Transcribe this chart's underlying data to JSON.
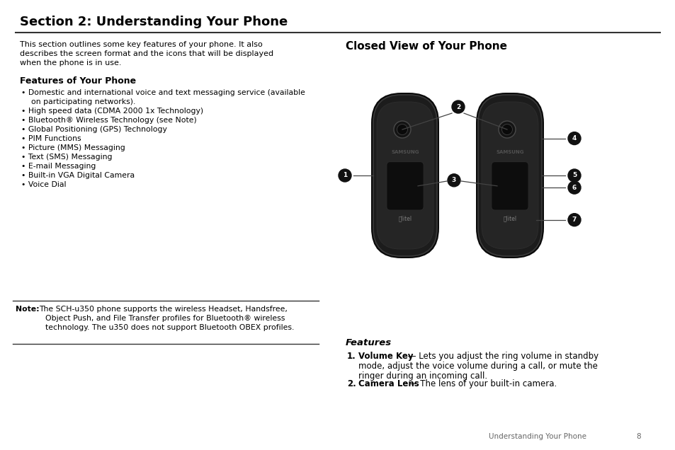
{
  "title": "Section 2: Understanding Your Phone",
  "bg_color": "#ffffff",
  "title_color": "#000000",
  "body_text_intro_lines": [
    "This section outlines some key features of your phone. It also",
    "describes the screen format and the icons that will be displayed",
    "when the phone is in use."
  ],
  "features_title": "Features of Your Phone",
  "features_list": [
    [
      "Domestic and international voice and text messaging service (available",
      "on participating networks)."
    ],
    [
      "High speed data (CDMA 2000 1x Technology)"
    ],
    [
      "Bluetooth® Wireless Technology (see Note)"
    ],
    [
      "Global Positioning (GPS) Technology"
    ],
    [
      "PIM Functions"
    ],
    [
      "Picture (MMS) Messaging"
    ],
    [
      "Text (SMS) Messaging"
    ],
    [
      "E-mail Messaging"
    ],
    [
      "Built-in VGA Digital Camera"
    ],
    [
      "Voice Dial"
    ]
  ],
  "note_line1": "The SCH-u350 phone supports the wireless Headset, Handsfree,",
  "note_line2": "Object Push, and File Transfer profiles for Bluetooth® wireless",
  "note_line3": "technology. The u350 does not support Bluetooth OBEX profiles.",
  "closed_view_title": "Closed View of Your Phone",
  "features_label": "Features",
  "feature_1_bold": "Volume Key",
  "feature_1_rest_line1": " — Lets you adjust the ring volume in standby",
  "feature_1_rest_line2": "mode, adjust the voice volume during a call, or mute the",
  "feature_1_rest_line3": "ringer during an incoming call.",
  "feature_2_bold": "Camera Lens",
  "feature_2_rest": " — The lens of your built-in camera.",
  "footer_text": "Understanding Your Phone",
  "footer_page": "8",
  "phone_dark": "#1c1c1c",
  "phone_mid": "#252525",
  "phone_edge": "#3a3a3a",
  "phone_screen": "#0d0d0d",
  "callout_bg": "#111111",
  "line_color": "#444444"
}
